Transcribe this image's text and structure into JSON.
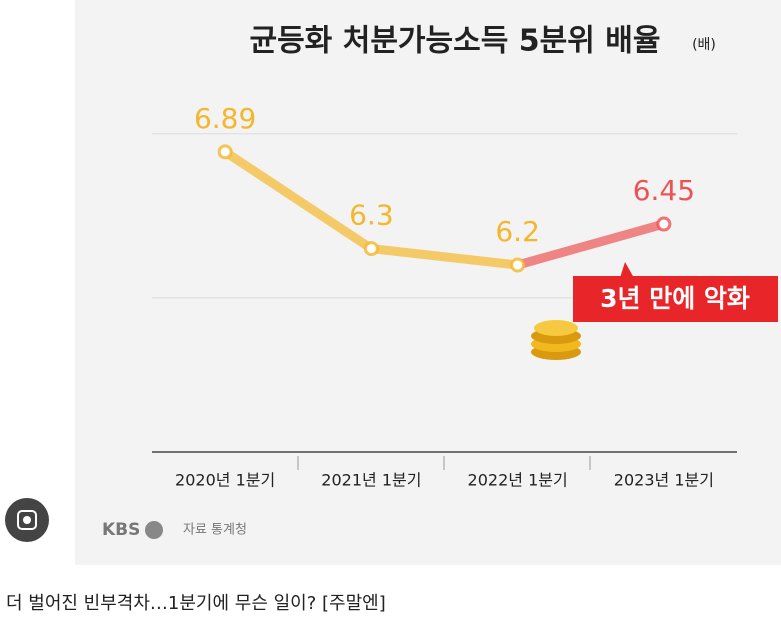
{
  "chart_data": {
    "type": "line",
    "title": "균등화 처분가능소득 5분위 배율",
    "unit_label": "(배)",
    "categories": [
      "2020년 1분기",
      "2021년 1분기",
      "2022년 1분기",
      "2023년 1분기"
    ],
    "values": [
      6.89,
      6.3,
      6.2,
      6.45
    ],
    "point_colors": [
      "#f4b62c",
      "#f4b62c",
      "#f4b62c",
      "#ec5454"
    ],
    "ylim": [
      5.06,
      7.2
    ],
    "yticks": [
      6,
      7
    ],
    "grid": true,
    "annotation": "3년 만에 악화",
    "logo": "KBS",
    "source": "자료 통계청"
  },
  "caption": "더 벌어진 빈부격차…1분기에 무슨 일이? [주말엔]"
}
